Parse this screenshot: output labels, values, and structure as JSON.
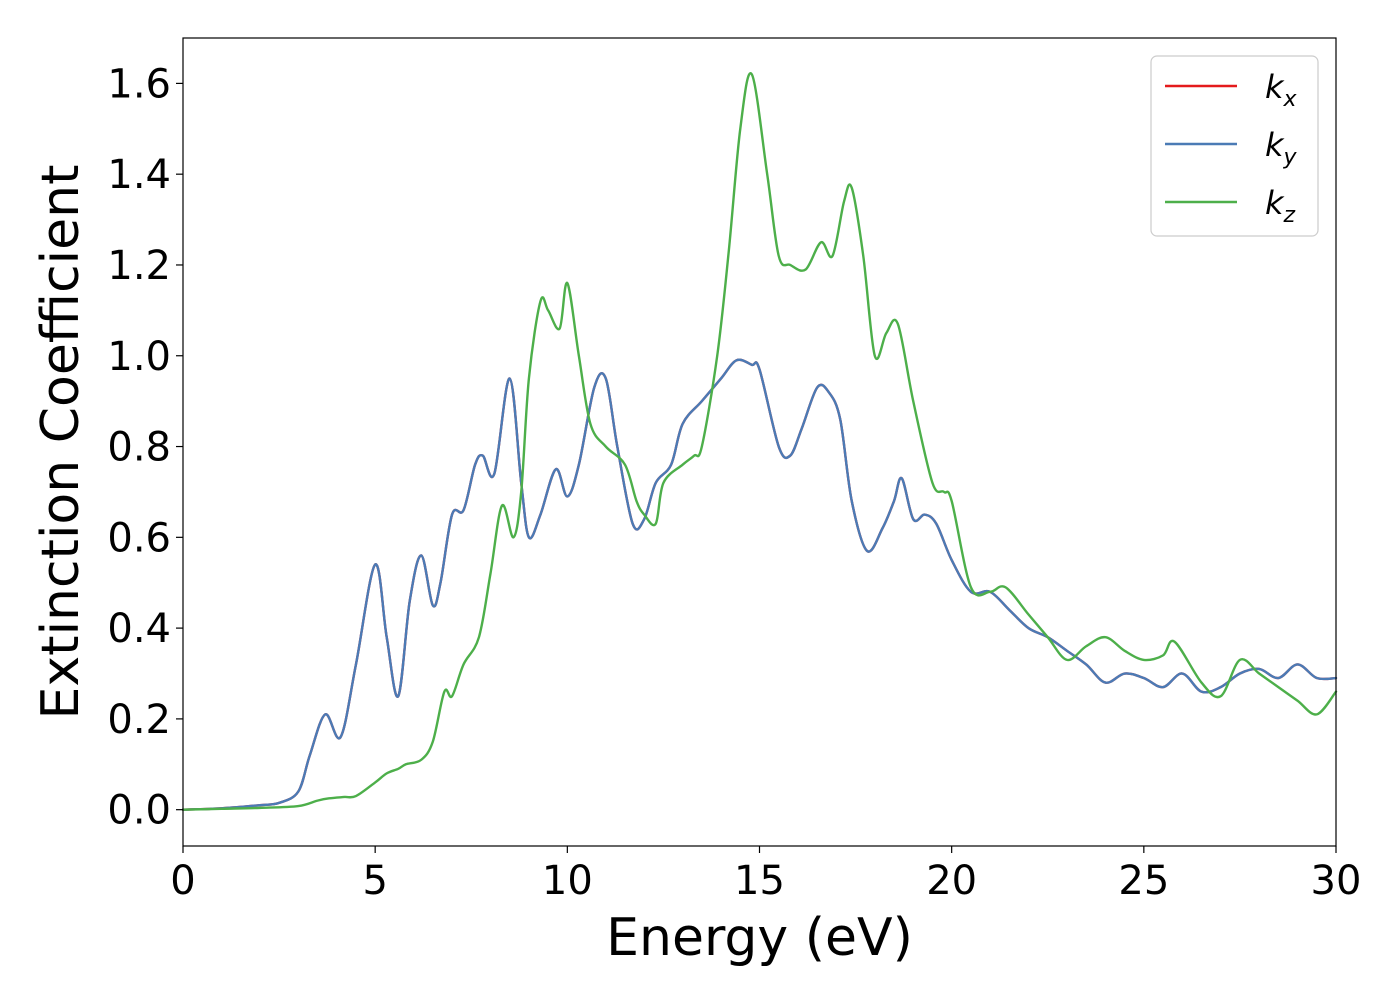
{
  "chart_data": {
    "type": "line",
    "xlabel": "Energy (eV)",
    "ylabel": "Extinction Coefficient",
    "xlim": [
      0,
      30
    ],
    "ylim": [
      -0.08,
      1.7
    ],
    "xticks": [
      0,
      5,
      10,
      15,
      20,
      25,
      30
    ],
    "xtick_labels": [
      "0",
      "5",
      "10",
      "15",
      "20",
      "25",
      "30"
    ],
    "yticks": [
      0.0,
      0.2,
      0.4,
      0.6,
      0.8,
      1.0,
      1.2,
      1.4,
      1.6
    ],
    "ytick_labels": [
      "0.0",
      "0.2",
      "0.4",
      "0.6",
      "0.8",
      "1.0",
      "1.2",
      "1.4",
      "1.6"
    ],
    "grid": false,
    "legend_position": "top-right",
    "series": [
      {
        "name": "kx",
        "label_main": "k",
        "label_sub": "x",
        "color": "#e41a1c",
        "x": [
          0,
          1,
          2,
          2.5,
          3,
          3.3,
          3.7,
          4.1,
          4.5,
          5.0,
          5.3,
          5.6,
          5.9,
          6.2,
          6.5,
          6.7,
          7.0,
          7.3,
          7.6,
          7.8,
          8.1,
          8.5,
          8.8,
          9.0,
          9.3,
          9.7,
          10.0,
          10.3,
          10.7,
          11.0,
          11.3,
          11.7,
          12.0,
          12.3,
          12.7,
          13.0,
          13.5,
          14.0,
          14.4,
          14.8,
          15.0,
          15.5,
          15.8,
          16.1,
          16.5,
          16.8,
          17.1,
          17.4,
          17.8,
          18.2,
          18.5,
          18.7,
          19.0,
          19.3,
          19.6,
          20.0,
          20.5,
          21.0,
          21.5,
          22.0,
          22.5,
          23.0,
          23.5,
          24.0,
          24.5,
          25.0,
          25.5,
          26.0,
          26.5,
          27.0,
          27.5,
          28.0,
          28.5,
          29.0,
          29.5,
          30.0
        ],
        "values": [
          0.0,
          0.003,
          0.01,
          0.015,
          0.04,
          0.12,
          0.21,
          0.16,
          0.32,
          0.54,
          0.38,
          0.25,
          0.46,
          0.56,
          0.45,
          0.5,
          0.65,
          0.66,
          0.76,
          0.78,
          0.74,
          0.95,
          0.72,
          0.6,
          0.65,
          0.75,
          0.69,
          0.76,
          0.93,
          0.95,
          0.8,
          0.63,
          0.64,
          0.72,
          0.76,
          0.85,
          0.9,
          0.95,
          0.99,
          0.98,
          0.97,
          0.8,
          0.78,
          0.84,
          0.93,
          0.92,
          0.86,
          0.68,
          0.57,
          0.62,
          0.68,
          0.73,
          0.64,
          0.65,
          0.63,
          0.55,
          0.48,
          0.48,
          0.44,
          0.4,
          0.38,
          0.35,
          0.32,
          0.28,
          0.3,
          0.29,
          0.27,
          0.3,
          0.26,
          0.27,
          0.3,
          0.31,
          0.29,
          0.32,
          0.29,
          0.29
        ]
      },
      {
        "name": "ky",
        "label_main": "k",
        "label_sub": "y",
        "color": "#4b7bb5",
        "x": [
          0,
          1,
          2,
          2.5,
          3,
          3.3,
          3.7,
          4.1,
          4.5,
          5.0,
          5.3,
          5.6,
          5.9,
          6.2,
          6.5,
          6.7,
          7.0,
          7.3,
          7.6,
          7.8,
          8.1,
          8.5,
          8.8,
          9.0,
          9.3,
          9.7,
          10.0,
          10.3,
          10.7,
          11.0,
          11.3,
          11.7,
          12.0,
          12.3,
          12.7,
          13.0,
          13.5,
          14.0,
          14.4,
          14.8,
          15.0,
          15.5,
          15.8,
          16.1,
          16.5,
          16.8,
          17.1,
          17.4,
          17.8,
          18.2,
          18.5,
          18.7,
          19.0,
          19.3,
          19.6,
          20.0,
          20.5,
          21.0,
          21.5,
          22.0,
          22.5,
          23.0,
          23.5,
          24.0,
          24.5,
          25.0,
          25.5,
          26.0,
          26.5,
          27.0,
          27.5,
          28.0,
          28.5,
          29.0,
          29.5,
          30.0
        ],
        "values": [
          0.0,
          0.003,
          0.01,
          0.015,
          0.04,
          0.12,
          0.21,
          0.16,
          0.32,
          0.54,
          0.38,
          0.25,
          0.46,
          0.56,
          0.45,
          0.5,
          0.65,
          0.66,
          0.76,
          0.78,
          0.74,
          0.95,
          0.72,
          0.6,
          0.65,
          0.75,
          0.69,
          0.76,
          0.93,
          0.95,
          0.8,
          0.63,
          0.64,
          0.72,
          0.76,
          0.85,
          0.9,
          0.95,
          0.99,
          0.98,
          0.97,
          0.8,
          0.78,
          0.84,
          0.93,
          0.92,
          0.86,
          0.68,
          0.57,
          0.62,
          0.68,
          0.73,
          0.64,
          0.65,
          0.63,
          0.55,
          0.48,
          0.48,
          0.44,
          0.4,
          0.38,
          0.35,
          0.32,
          0.28,
          0.3,
          0.29,
          0.27,
          0.3,
          0.26,
          0.27,
          0.3,
          0.31,
          0.29,
          0.32,
          0.29,
          0.29
        ]
      },
      {
        "name": "kz",
        "label_main": "k",
        "label_sub": "z",
        "color": "#4daf4a",
        "x": [
          0,
          1,
          2,
          3,
          3.5,
          3.8,
          4.2,
          4.5,
          5.0,
          5.3,
          5.6,
          5.8,
          6.2,
          6.5,
          6.8,
          7.0,
          7.3,
          7.7,
          8.0,
          8.3,
          8.6,
          8.8,
          9.0,
          9.3,
          9.5,
          9.8,
          10.0,
          10.3,
          10.6,
          11.0,
          11.5,
          11.8,
          12.0,
          12.3,
          12.5,
          13.0,
          13.3,
          13.5,
          13.9,
          14.2,
          14.5,
          14.8,
          15.2,
          15.5,
          15.8,
          16.2,
          16.6,
          16.9,
          17.2,
          17.4,
          17.7,
          18.0,
          18.3,
          18.6,
          19.0,
          19.5,
          19.8,
          20.0,
          20.5,
          21.0,
          21.4,
          22.0,
          22.5,
          23.0,
          23.5,
          24.0,
          24.5,
          25.0,
          25.5,
          25.8,
          26.5,
          27.0,
          27.5,
          28.0,
          28.5,
          29.0,
          29.5,
          30.0
        ],
        "values": [
          0.0,
          0.002,
          0.004,
          0.008,
          0.02,
          0.025,
          0.028,
          0.03,
          0.06,
          0.08,
          0.09,
          0.1,
          0.11,
          0.15,
          0.26,
          0.25,
          0.32,
          0.38,
          0.52,
          0.67,
          0.6,
          0.7,
          0.95,
          1.12,
          1.1,
          1.06,
          1.16,
          1.0,
          0.85,
          0.8,
          0.76,
          0.68,
          0.65,
          0.63,
          0.72,
          0.76,
          0.78,
          0.8,
          1.0,
          1.23,
          1.5,
          1.62,
          1.4,
          1.22,
          1.2,
          1.19,
          1.25,
          1.22,
          1.34,
          1.37,
          1.22,
          1.0,
          1.05,
          1.07,
          0.9,
          0.72,
          0.7,
          0.68,
          0.49,
          0.48,
          0.49,
          0.43,
          0.38,
          0.33,
          0.36,
          0.38,
          0.35,
          0.33,
          0.34,
          0.37,
          0.28,
          0.25,
          0.33,
          0.3,
          0.27,
          0.24,
          0.21,
          0.26
        ]
      }
    ]
  }
}
